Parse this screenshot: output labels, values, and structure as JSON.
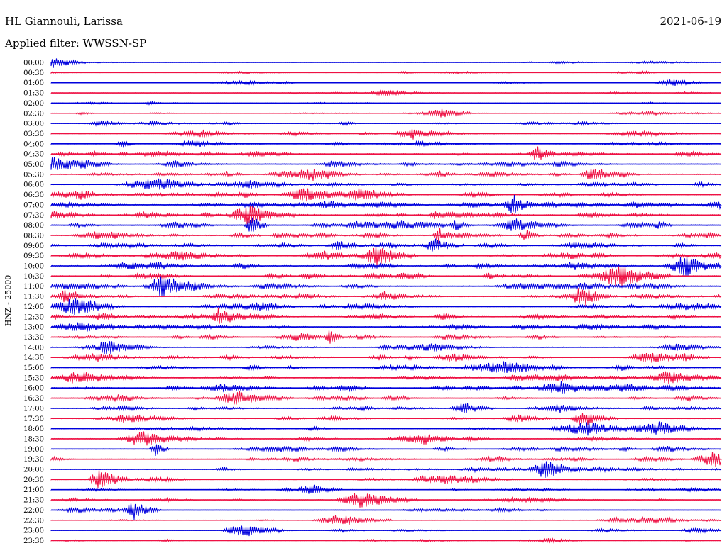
{
  "header": {
    "station": "HL Giannouli, Larissa",
    "date": "2021-06-19",
    "filter": "Applied filter: WWSSN-SP"
  },
  "chart_data": {
    "type": "line",
    "title": "HL Giannouli, Larissa",
    "subtitle": "Applied filter: WWSSN-SP",
    "date": "2021-06-19",
    "ylabel": "HNZ - 25000",
    "xlabel": "",
    "grid": false,
    "legend": "none",
    "colors": {
      "even_trace": "#0000dd",
      "odd_trace": "#ee1144",
      "text": "#000000"
    },
    "rows": [
      {
        "label": "00:00",
        "activity": 0.15,
        "max_event": 0.9
      },
      {
        "label": "00:30",
        "activity": 0.12,
        "max_event": 0.3
      },
      {
        "label": "01:00",
        "activity": 0.15,
        "max_event": 0.5
      },
      {
        "label": "01:30",
        "activity": 0.15,
        "max_event": 0.3
      },
      {
        "label": "02:00",
        "activity": 0.2,
        "max_event": 0.3
      },
      {
        "label": "02:30",
        "activity": 0.25,
        "max_event": 0.6
      },
      {
        "label": "03:00",
        "activity": 0.3,
        "max_event": 0.3
      },
      {
        "label": "03:30",
        "activity": 0.35,
        "max_event": 0.6
      },
      {
        "label": "04:00",
        "activity": 0.45,
        "max_event": 0.6
      },
      {
        "label": "04:30",
        "activity": 0.55,
        "max_event": 0.8
      },
      {
        "label": "05:00",
        "activity": 0.55,
        "max_event": 0.8
      },
      {
        "label": "05:30",
        "activity": 0.65,
        "max_event": 1.0
      },
      {
        "label": "06:00",
        "activity": 0.6,
        "max_event": 0.8
      },
      {
        "label": "06:30",
        "activity": 0.65,
        "max_event": 1.0
      },
      {
        "label": "07:00",
        "activity": 0.7,
        "max_event": 1.4
      },
      {
        "label": "07:30",
        "activity": 0.7,
        "max_event": 1.1
      },
      {
        "label": "08:00",
        "activity": 0.75,
        "max_event": 1.3
      },
      {
        "label": "08:30",
        "activity": 0.7,
        "max_event": 1.1
      },
      {
        "label": "09:00",
        "activity": 0.7,
        "max_event": 1.0
      },
      {
        "label": "09:30",
        "activity": 0.7,
        "max_event": 1.1
      },
      {
        "label": "10:00",
        "activity": 0.75,
        "max_event": 1.3
      },
      {
        "label": "10:30",
        "activity": 0.7,
        "max_event": 1.2
      },
      {
        "label": "11:00",
        "activity": 0.75,
        "max_event": 1.3
      },
      {
        "label": "11:30",
        "activity": 0.7,
        "max_event": 1.0
      },
      {
        "label": "12:00",
        "activity": 0.7,
        "max_event": 1.2
      },
      {
        "label": "12:30",
        "activity": 0.65,
        "max_event": 1.0
      },
      {
        "label": "13:00",
        "activity": 0.5,
        "max_event": 0.7
      },
      {
        "label": "13:30",
        "activity": 0.55,
        "max_event": 1.1
      },
      {
        "label": "14:00",
        "activity": 0.55,
        "max_event": 1.0
      },
      {
        "label": "14:30",
        "activity": 0.55,
        "max_event": 0.9
      },
      {
        "label": "15:00",
        "activity": 0.6,
        "max_event": 0.9
      },
      {
        "label": "15:30",
        "activity": 0.65,
        "max_event": 1.0
      },
      {
        "label": "16:00",
        "activity": 0.6,
        "max_event": 1.0
      },
      {
        "label": "16:30",
        "activity": 0.55,
        "max_event": 0.9
      },
      {
        "label": "17:00",
        "activity": 0.55,
        "max_event": 0.9
      },
      {
        "label": "17:30",
        "activity": 0.5,
        "max_event": 0.9
      },
      {
        "label": "18:00",
        "activity": 0.55,
        "max_event": 1.0
      },
      {
        "label": "18:30",
        "activity": 0.45,
        "max_event": 0.8
      },
      {
        "label": "19:00",
        "activity": 0.45,
        "max_event": 1.1
      },
      {
        "label": "19:30",
        "activity": 0.5,
        "max_event": 0.9
      },
      {
        "label": "20:00",
        "activity": 0.5,
        "max_event": 1.2
      },
      {
        "label": "20:30",
        "activity": 0.45,
        "max_event": 1.4
      },
      {
        "label": "21:00",
        "activity": 0.3,
        "max_event": 0.8
      },
      {
        "label": "21:30",
        "activity": 0.3,
        "max_event": 1.2
      },
      {
        "label": "22:00",
        "activity": 0.3,
        "max_event": 1.3
      },
      {
        "label": "22:30",
        "activity": 0.3,
        "max_event": 0.7
      },
      {
        "label": "23:00",
        "activity": 0.25,
        "max_event": 0.9
      },
      {
        "label": "23:30",
        "activity": 0.2,
        "max_event": 0.3
      }
    ]
  }
}
